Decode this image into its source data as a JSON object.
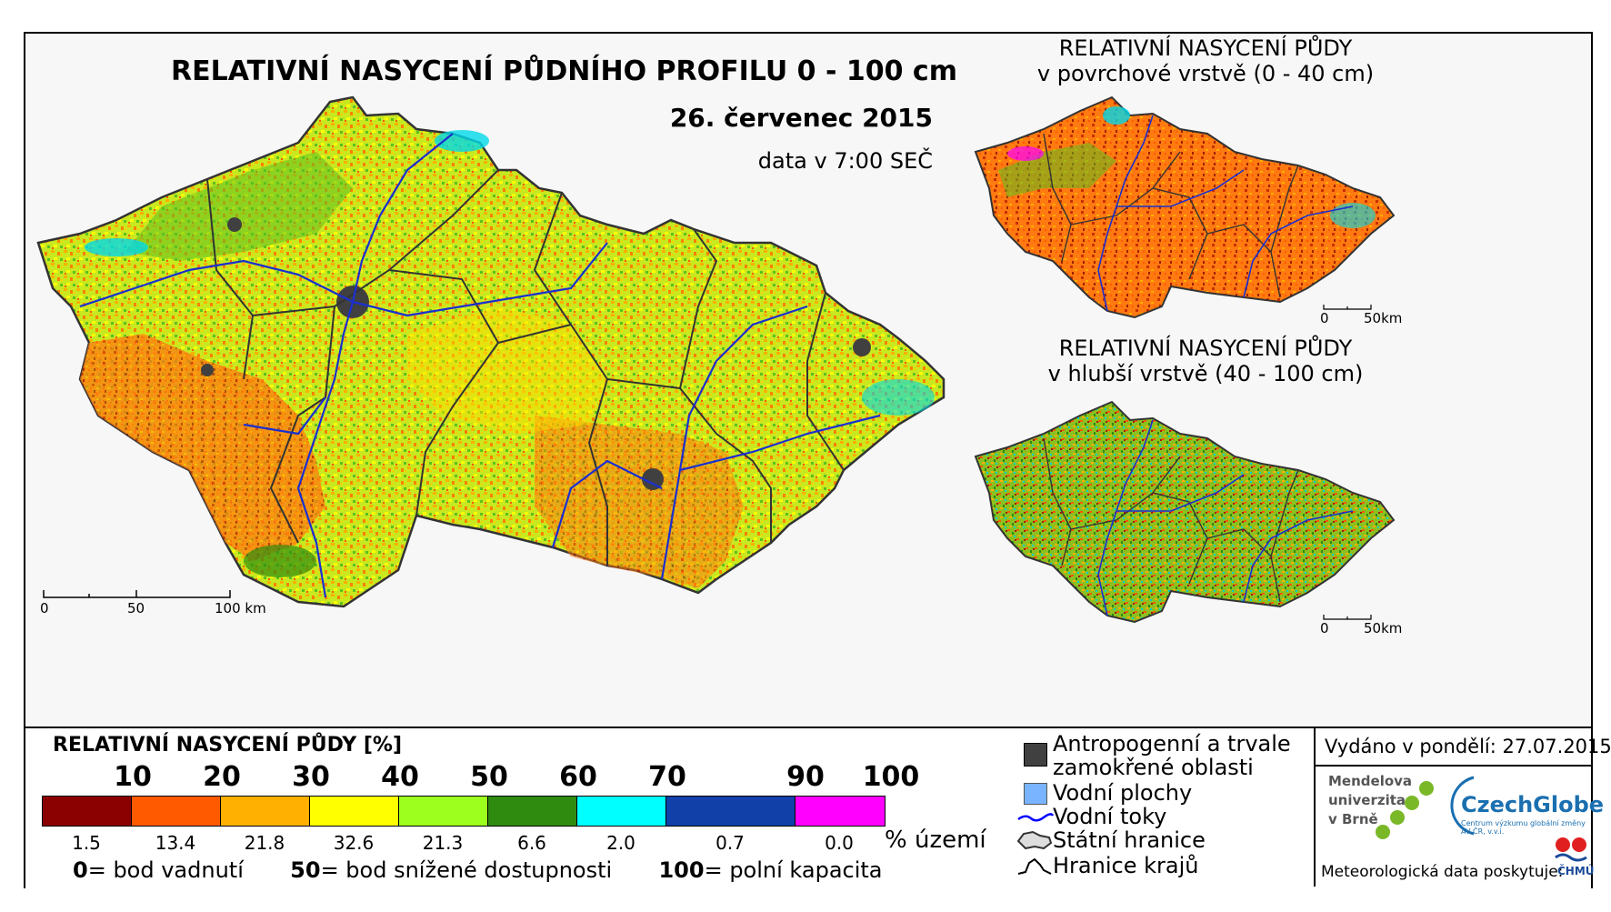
{
  "map": {
    "title": "RELATIVNÍ NASYCENÍ PŮDNÍHO PROFILU 0 - 100 cm",
    "date": "26. červenec 2015",
    "time": "data v 7:00 SEČ",
    "scale_labels": [
      "0",
      "50",
      "100 km"
    ]
  },
  "inset_top": {
    "title_line1": "RELATIVNÍ NASYCENÍ PŮDY",
    "title_line2": "v povrchové vrstvě (0 - 40 cm)",
    "scale_labels": [
      "0",
      "50km"
    ]
  },
  "inset_bottom": {
    "title_line1": "RELATIVNÍ NASYCENÍ PŮDY",
    "title_line2": "v hlubší vrstvě (40 - 100 cm)",
    "scale_labels": [
      "0",
      "50km"
    ]
  },
  "legend": {
    "title": "RELATIVNÍ NASYCENÍ PŮDY [%]",
    "ticks": [
      "10",
      "20",
      "30",
      "40",
      "50",
      "60",
      "70",
      "90",
      "100"
    ],
    "classes": [
      {
        "color": "#8b0000",
        "pct": "1.5"
      },
      {
        "color": "#ff5a00",
        "pct": "13.4"
      },
      {
        "color": "#ffb000",
        "pct": "21.8"
      },
      {
        "color": "#ffff00",
        "pct": "32.6"
      },
      {
        "color": "#9cff1e",
        "pct": "21.3"
      },
      {
        "color": "#2e8b10",
        "pct": "6.6"
      },
      {
        "color": "#00ffff",
        "pct": "2.0"
      },
      {
        "color": "#1040a8",
        "pct": "0.7"
      },
      {
        "color": "#ff00ff",
        "pct": "0.0"
      }
    ],
    "pct_unit": "% území",
    "desc": [
      {
        "num": "0",
        "text": "= bod vadnutí"
      },
      {
        "num": "50",
        "text": "= bod snížené dostupnosti"
      },
      {
        "num": "100",
        "text": "= polní kapacita"
      }
    ]
  },
  "symbols": {
    "wet_line1": "Antropogenní a trvale",
    "wet_line2": "zamokřené oblasti",
    "water": "Vodní plochy",
    "rivers": "Vodní toky",
    "state_border": "Státní hranice",
    "region_border": "Hranice krajů",
    "colors": {
      "wet": "#404040",
      "water": "#78b4ff",
      "river": "#0000ff"
    }
  },
  "info": {
    "issued": "Vydáno v pondělí: 27.07.2015",
    "mendel": [
      "Mendelova",
      "univerzita",
      "v Brně"
    ],
    "czechglobe": "CzechGlobe",
    "czechglobe_sub": "Centrum výzkumu globální změny AV ČR, v.v.i.",
    "meteo": "Meteorologická data poskytuje:",
    "chmu": "ČHMÚ"
  }
}
